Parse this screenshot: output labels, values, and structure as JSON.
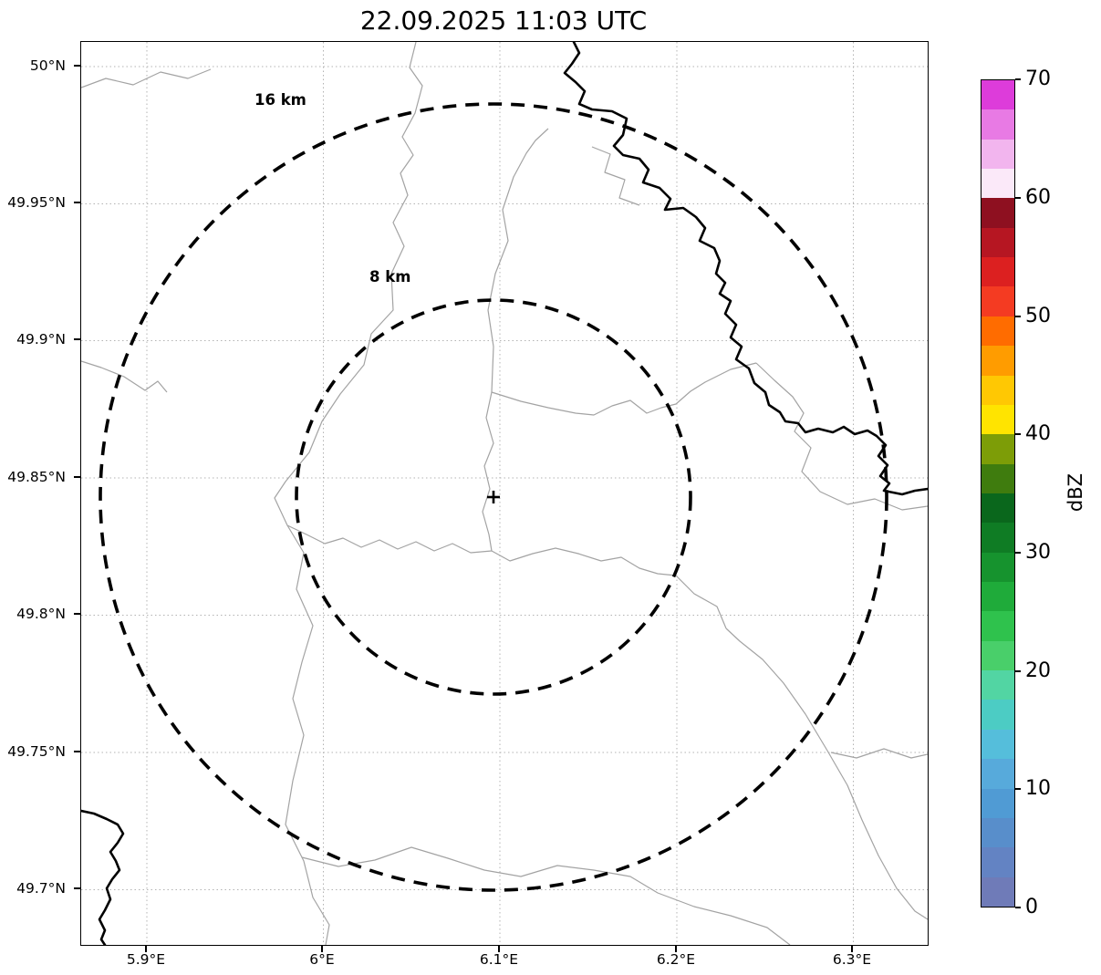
{
  "title": "22.09.2025 11:03 UTC",
  "axes": {
    "y_ticks": [
      "50°N",
      "49.95°N",
      "49.9°N",
      "49.85°N",
      "49.8°N",
      "49.75°N",
      "49.7°N"
    ],
    "x_ticks": [
      "5.9°E",
      "6°E",
      "6.1°E",
      "6.2°E",
      "6.3°E"
    ]
  },
  "map": {
    "range_ring_labels": [
      "16 km",
      "8 km"
    ],
    "center_marker": "+"
  },
  "colorbar": {
    "label": "dBZ",
    "tick_labels_top_to_bottom": [
      "70",
      "60",
      "50",
      "40",
      "30",
      "20",
      "10",
      "0"
    ],
    "colors_bottom_to_top": [
      "#6f7bb8",
      "#6383c3",
      "#588ecb",
      "#509bd4",
      "#57aadb",
      "#55bedb",
      "#4cccc4",
      "#52d5a3",
      "#49cf6a",
      "#2fc24d",
      "#1fab3a",
      "#16932e",
      "#0f7c24",
      "#0a671c",
      "#3f7c0e",
      "#7d9d07",
      "#ffe400",
      "#ffc803",
      "#ff9c00",
      "#ff6c00",
      "#f43b22",
      "#dc2020",
      "#b61622",
      "#8e1020",
      "#fbe9f9",
      "#f2b5ee",
      "#e87ae4",
      "#dd3cda"
    ]
  },
  "chart_data": {
    "type": "map",
    "subtype": "weather_radar_display_over_boundary_map",
    "title": "22.09.2025 11:03 UTC",
    "x_axis": {
      "tick_labels": [
        "5.9°E",
        "6°E",
        "6.1°E",
        "6.2°E",
        "6.3°E"
      ],
      "approx_range_deg_e": [
        5.863,
        6.342
      ],
      "grid": "dotted"
    },
    "y_axis": {
      "tick_labels": [
        "50°N",
        "49.95°N",
        "49.9°N",
        "49.85°N",
        "49.8°N",
        "49.75°N",
        "49.7°N"
      ],
      "approx_range_deg_n": [
        49.68,
        50.009
      ],
      "grid": "dotted"
    },
    "radar_site_approx": {
      "lon_deg_e": 6.096,
      "lat_deg_n": 49.843,
      "marker": "+"
    },
    "range_rings_km": [
      8,
      16
    ],
    "range_ring_style": "black dashed circles labeled 8 km and 16 km",
    "reflectivity_scale": {
      "units": "dBZ",
      "min": 0,
      "max": 70,
      "tick_step": 10,
      "segment_step": 2.5,
      "ticks": [
        0,
        10,
        20,
        30,
        40,
        50,
        60,
        70
      ]
    },
    "echoes_plotted": "none visible (map background only, no reflectivity shading)",
    "map_features": [
      "thin gray administrative boundary lines",
      "thick black river/border line entering at top center and exiting at right edge near 49.85°N",
      "thick black river segment in the bottom-left corner"
    ]
  }
}
